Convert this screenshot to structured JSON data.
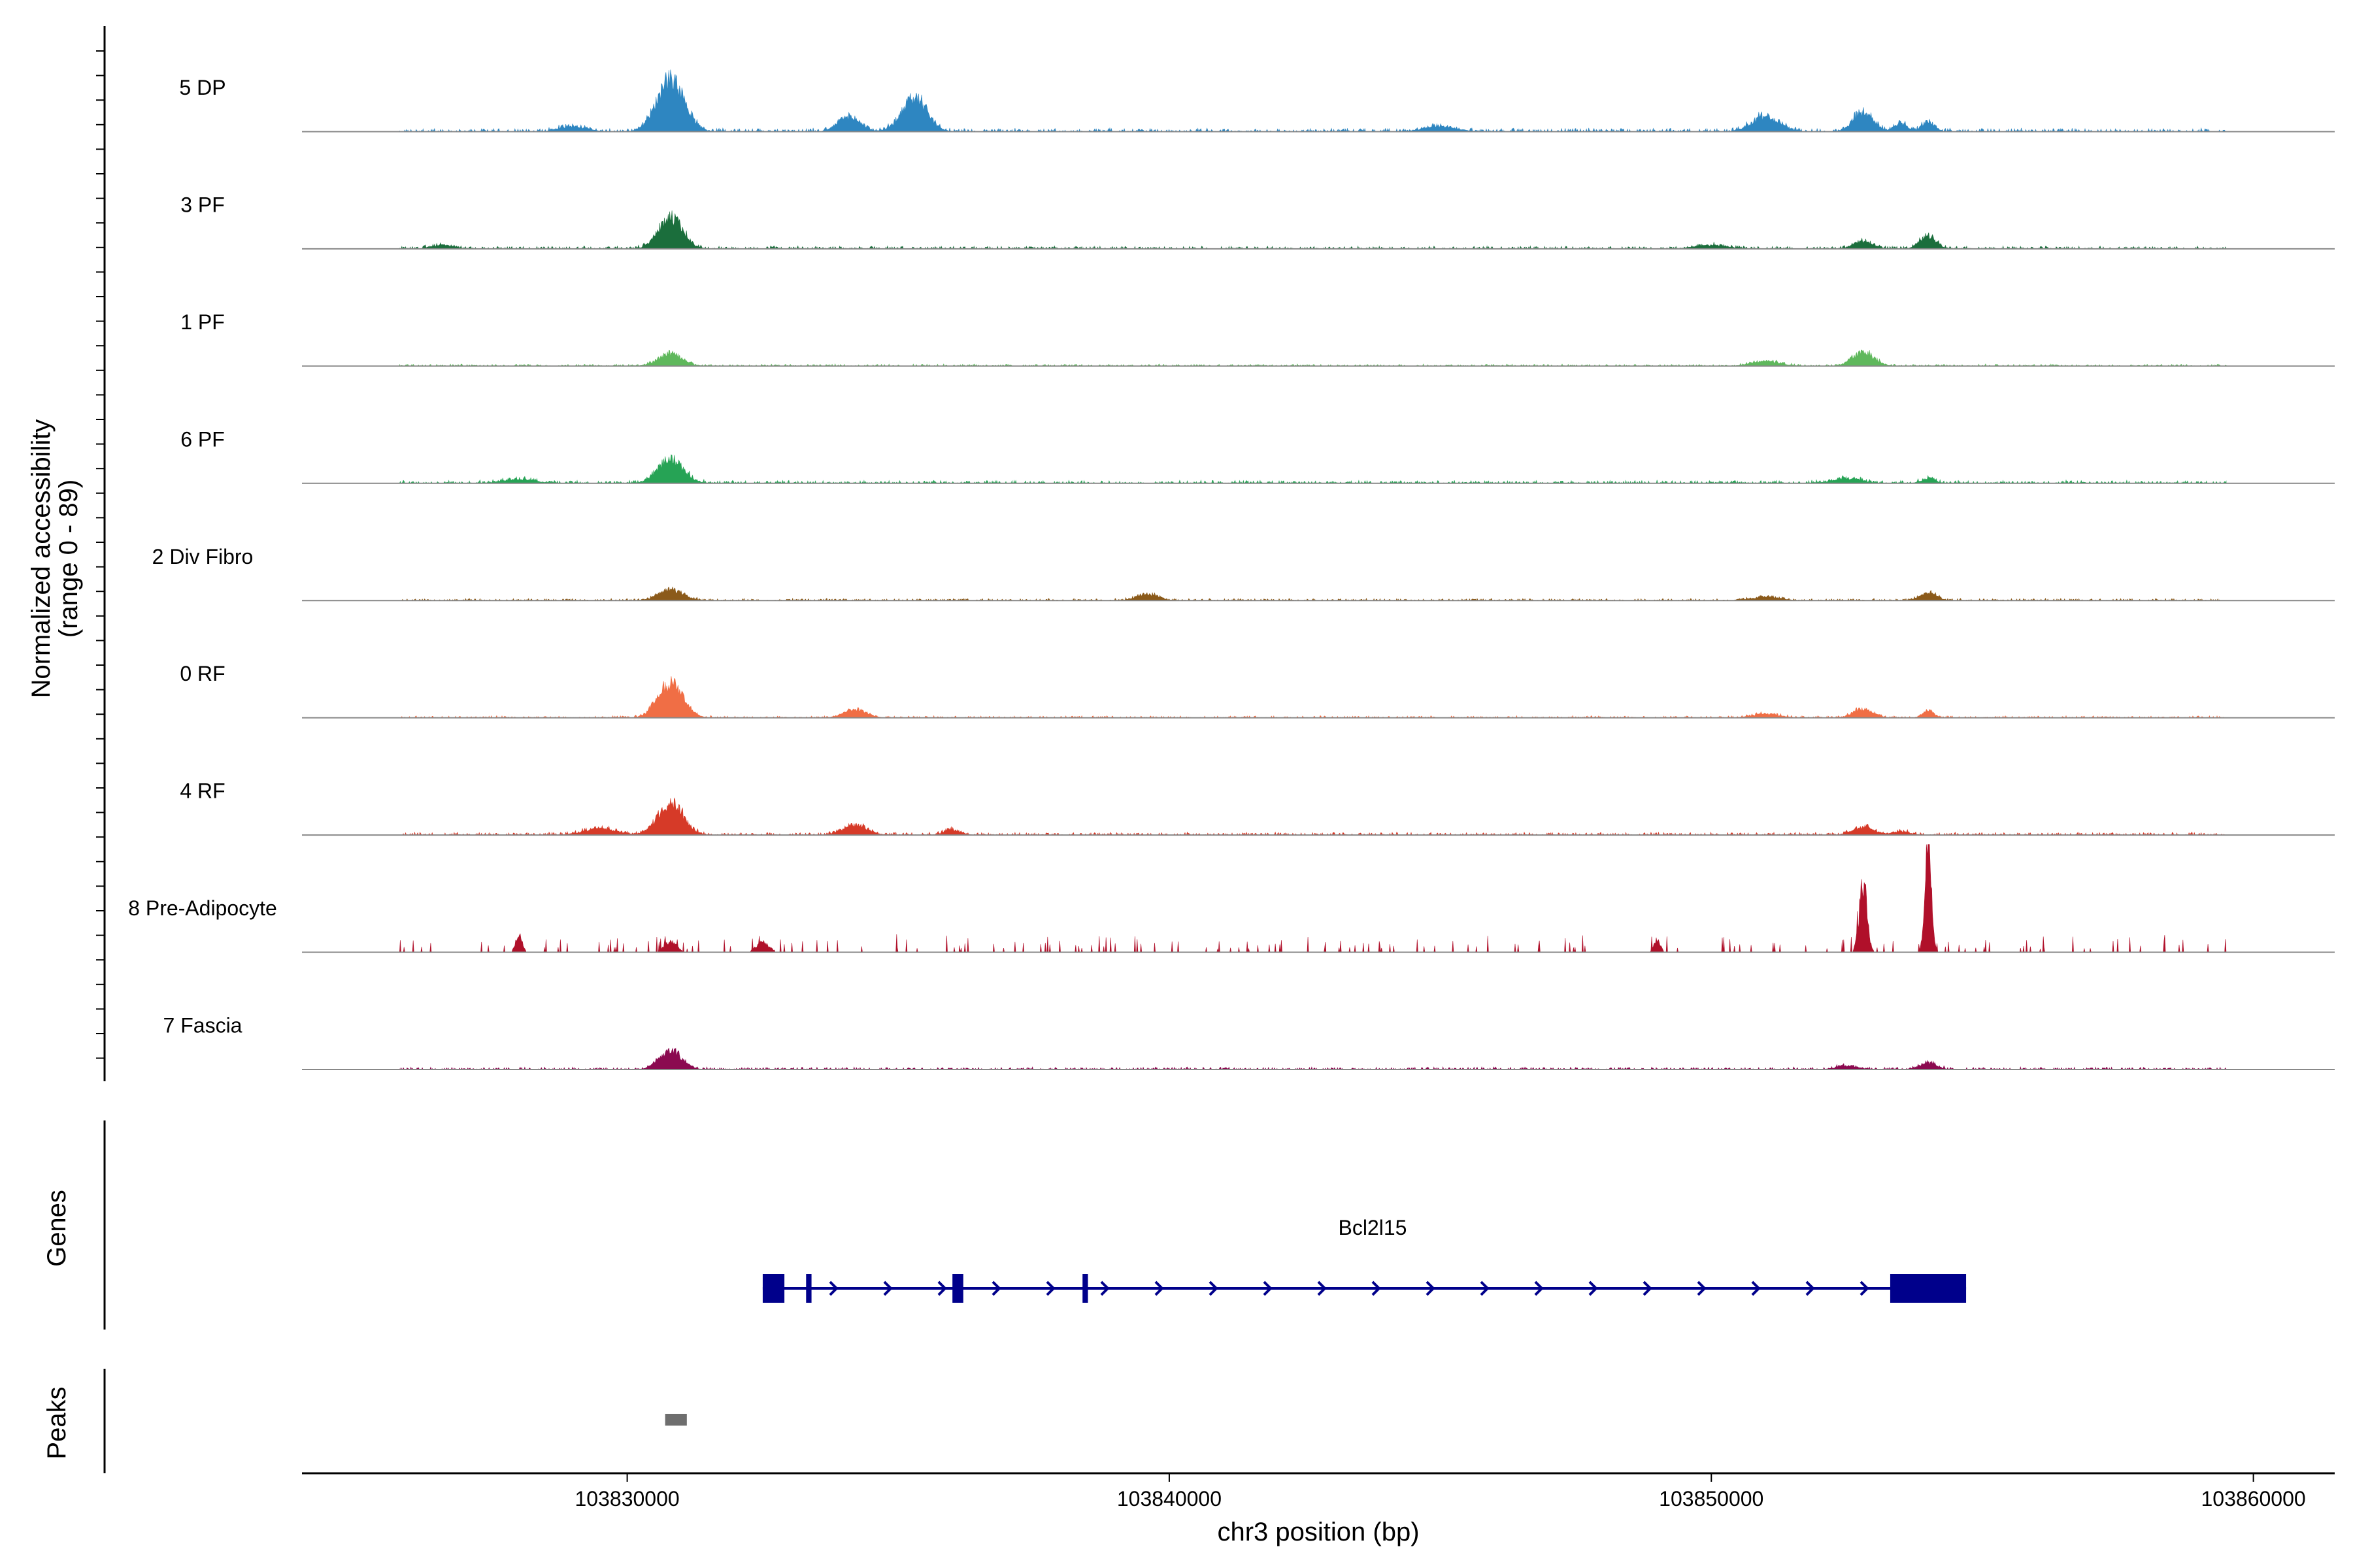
{
  "chart_data": {
    "type": "area",
    "title": "",
    "ylabel_line1": "Normalized accessibility",
    "ylabel_line2": "(range 0 - 89)",
    "y_range": [
      0,
      89
    ],
    "xlabel": "chr3 position (bp)",
    "x_range": [
      103824000,
      103861500
    ],
    "x_ticks": [
      {
        "value": 103830000,
        "label": "103830000"
      },
      {
        "value": 103840000,
        "label": "103840000"
      },
      {
        "value": 103850000,
        "label": "103850000"
      },
      {
        "value": 103860000,
        "label": "103860000"
      }
    ],
    "tracks": [
      {
        "name": "5 DP",
        "color": "#2e86c1",
        "peaks": [
          [
            103830800,
            42,
            250
          ],
          [
            103834100,
            12,
            200
          ],
          [
            103835300,
            28,
            230
          ],
          [
            103851000,
            12,
            250
          ],
          [
            103852800,
            16,
            180
          ],
          [
            103853500,
            6,
            120
          ],
          [
            103854000,
            8,
            120
          ],
          [
            103829000,
            4,
            250
          ],
          [
            103845000,
            4,
            300
          ]
        ],
        "noise": 2.5,
        "seed": 11
      },
      {
        "name": "3 PF",
        "color": "#1b6e3c",
        "peaks": [
          [
            103830800,
            25,
            220
          ],
          [
            103852800,
            6,
            180
          ],
          [
            103854000,
            10,
            150
          ],
          [
            103826600,
            3,
            200
          ],
          [
            103850000,
            3,
            300
          ]
        ],
        "noise": 2,
        "seed": 23
      },
      {
        "name": "1 PF",
        "color": "#5fb85c",
        "peaks": [
          [
            103830800,
            10,
            220
          ],
          [
            103852800,
            11,
            200
          ],
          [
            103851000,
            4,
            250
          ]
        ],
        "noise": 1.5,
        "seed": 37
      },
      {
        "name": "6 PF",
        "color": "#26a355",
        "peaks": [
          [
            103830800,
            20,
            230
          ],
          [
            103852500,
            4,
            250
          ],
          [
            103854000,
            4,
            120
          ],
          [
            103828000,
            3,
            300
          ]
        ],
        "noise": 2.2,
        "seed": 41
      },
      {
        "name": "2 Div Fibro",
        "color": "#8b5a1a",
        "peaks": [
          [
            103830800,
            9,
            220
          ],
          [
            103839600,
            5,
            200
          ],
          [
            103854000,
            6,
            150
          ],
          [
            103851000,
            3,
            250
          ]
        ],
        "noise": 1.5,
        "seed": 53
      },
      {
        "name": "0 RF",
        "color": "#f06e45",
        "peaks": [
          [
            103830800,
            28,
            230
          ],
          [
            103834200,
            7,
            200
          ],
          [
            103852800,
            7,
            180
          ],
          [
            103854000,
            6,
            100
          ],
          [
            103851000,
            3,
            250
          ]
        ],
        "noise": 1.5,
        "seed": 67
      },
      {
        "name": "4 RF",
        "color": "#d63a28",
        "peaks": [
          [
            103830800,
            26,
            230
          ],
          [
            103834200,
            8,
            220
          ],
          [
            103829500,
            5,
            300
          ],
          [
            103852800,
            6,
            200
          ],
          [
            103853500,
            3,
            150
          ],
          [
            103836000,
            4,
            150
          ]
        ],
        "noise": 2,
        "seed": 71
      },
      {
        "name": "8 Pre-Adipocyte",
        "color": "#b0102a",
        "peaks": [
          [
            103852800,
            58,
            70
          ],
          [
            103854000,
            89,
            60
          ],
          [
            103828000,
            14,
            60
          ],
          [
            103830800,
            8,
            120
          ],
          [
            103832500,
            8,
            120
          ],
          [
            103849000,
            10,
            60
          ]
        ],
        "noise": 3,
        "seed": 83,
        "sparse": true
      },
      {
        "name": "7 Fascia",
        "color": "#8b0a50",
        "peaks": [
          [
            103830800,
            16,
            200
          ],
          [
            103854000,
            5,
            150
          ],
          [
            103852500,
            3,
            200
          ]
        ],
        "noise": 1.8,
        "seed": 97
      }
    ],
    "genes_title": "Genes",
    "gene": {
      "name": "Bcl2l15",
      "start": 103832500,
      "end": 103854700,
      "strand": "+",
      "color": "#00008b",
      "exons": [
        [
          103832500,
          103832900
        ],
        [
          103833300,
          103833400
        ],
        [
          103836000,
          103836200
        ],
        [
          103838400,
          103838500
        ],
        [
          103853300,
          103854700
        ]
      ]
    },
    "peaks_title": "Peaks",
    "peak_regions": [
      {
        "start": 103830700,
        "end": 103831100,
        "color": "#6e6e6e"
      }
    ]
  }
}
